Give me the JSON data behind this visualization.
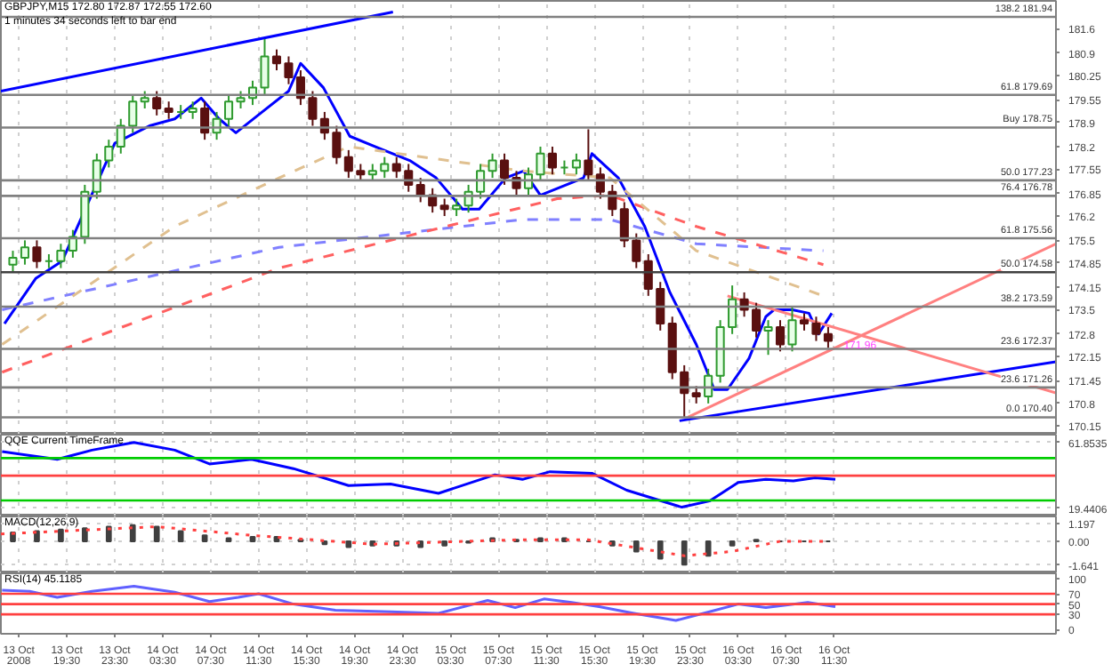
{
  "chart_data": [
    {
      "type": "candlestick",
      "title": "GBPJPY,M15  172.80 172.87 172.55 172.60",
      "subtitle": "1 minutes 34 seconds left to bar end",
      "x": [
        "2008-10-13T15:00",
        "2008-10-13T16:00",
        "2008-10-13T17:00",
        "2008-10-13T18:00",
        "2008-10-13T19:00",
        "2008-10-13T20:00",
        "2008-10-13T21:00",
        "2008-10-13T22:00",
        "2008-10-13T23:00",
        "2008-10-14T00:00",
        "2008-10-14T01:00",
        "2008-10-14T02:00",
        "2008-10-14T03:00",
        "2008-10-14T04:00",
        "2008-10-14T05:00",
        "2008-10-14T06:00",
        "2008-10-14T07:00",
        "2008-10-14T08:00",
        "2008-10-14T09:00",
        "2008-10-14T10:00",
        "2008-10-14T11:00",
        "2008-10-14T12:00",
        "2008-10-14T13:00",
        "2008-10-14T14:00",
        "2008-10-14T15:00",
        "2008-10-14T16:00",
        "2008-10-14T17:00",
        "2008-10-14T18:00",
        "2008-10-14T19:00",
        "2008-10-14T20:00",
        "2008-10-14T21:00",
        "2008-10-14T22:00",
        "2008-10-14T23:00",
        "2008-10-15T00:00",
        "2008-10-15T01:00",
        "2008-10-15T02:00",
        "2008-10-15T03:00",
        "2008-10-15T04:00",
        "2008-10-15T05:00",
        "2008-10-15T06:00",
        "2008-10-15T07:00",
        "2008-10-15T08:00",
        "2008-10-15T09:00",
        "2008-10-15T10:00",
        "2008-10-15T11:00",
        "2008-10-15T12:00",
        "2008-10-15T13:00",
        "2008-10-15T14:00",
        "2008-10-15T15:00",
        "2008-10-15T16:00",
        "2008-10-15T17:00",
        "2008-10-15T18:00",
        "2008-10-15T19:00",
        "2008-10-15T20:00",
        "2008-10-15T21:00",
        "2008-10-15T22:00",
        "2008-10-15T23:00",
        "2008-10-16T00:00",
        "2008-10-16T01:00",
        "2008-10-16T02:00",
        "2008-10-16T03:00",
        "2008-10-16T04:00",
        "2008-10-16T05:00",
        "2008-10-16T06:00",
        "2008-10-16T07:00",
        "2008-10-16T08:00",
        "2008-10-16T09:00",
        "2008-10-16T10:00",
        "2008-10-16T11:00"
      ],
      "ohlc": [
        [
          174.8,
          175.2,
          174.6,
          175.0
        ],
        [
          175.0,
          175.5,
          174.8,
          175.3
        ],
        [
          175.3,
          175.5,
          174.7,
          174.9
        ],
        [
          174.9,
          175.1,
          174.7,
          174.9
        ],
        [
          174.9,
          175.4,
          174.7,
          175.2
        ],
        [
          175.2,
          175.8,
          175.0,
          175.6
        ],
        [
          175.6,
          177.1,
          175.4,
          176.9
        ],
        [
          176.9,
          178.0,
          176.7,
          177.8
        ],
        [
          177.8,
          178.4,
          177.6,
          178.2
        ],
        [
          178.2,
          179.0,
          178.0,
          178.8
        ],
        [
          178.8,
          179.7,
          178.6,
          179.5
        ],
        [
          179.5,
          179.8,
          179.3,
          179.6
        ],
        [
          179.6,
          179.8,
          179.1,
          179.3
        ],
        [
          179.3,
          179.5,
          179.0,
          179.2
        ],
        [
          179.2,
          179.4,
          179.0,
          179.2
        ],
        [
          179.2,
          179.5,
          179.0,
          179.3
        ],
        [
          179.3,
          179.5,
          178.4,
          178.6
        ],
        [
          178.6,
          179.2,
          178.4,
          179.0
        ],
        [
          179.0,
          179.7,
          178.8,
          179.5
        ],
        [
          179.5,
          179.8,
          179.3,
          179.6
        ],
        [
          179.6,
          180.1,
          179.4,
          179.9
        ],
        [
          179.9,
          181.3,
          179.7,
          180.8
        ],
        [
          180.8,
          181.0,
          180.4,
          180.6
        ],
        [
          180.6,
          180.8,
          180.0,
          180.2
        ],
        [
          180.2,
          180.4,
          179.4,
          179.6
        ],
        [
          179.6,
          179.8,
          178.8,
          179.0
        ],
        [
          179.0,
          179.2,
          178.4,
          178.6
        ],
        [
          178.6,
          178.8,
          177.7,
          177.9
        ],
        [
          177.9,
          178.1,
          177.3,
          177.5
        ],
        [
          177.5,
          177.7,
          177.2,
          177.4
        ],
        [
          177.4,
          177.7,
          177.2,
          177.5
        ],
        [
          177.5,
          177.9,
          177.3,
          177.7
        ],
        [
          177.7,
          177.9,
          177.3,
          177.5
        ],
        [
          177.5,
          177.7,
          176.9,
          177.1
        ],
        [
          177.1,
          177.3,
          176.6,
          176.8
        ],
        [
          176.8,
          177.0,
          176.3,
          176.5
        ],
        [
          176.5,
          176.7,
          176.2,
          176.4
        ],
        [
          176.4,
          176.7,
          176.2,
          176.5
        ],
        [
          176.5,
          177.1,
          176.3,
          176.9
        ],
        [
          176.9,
          177.7,
          176.7,
          177.5
        ],
        [
          177.5,
          178.0,
          177.3,
          177.8
        ],
        [
          177.8,
          178.0,
          177.1,
          177.3
        ],
        [
          177.3,
          177.5,
          176.8,
          177.0
        ],
        [
          177.0,
          177.6,
          176.8,
          177.4
        ],
        [
          177.4,
          178.2,
          177.2,
          178.0
        ],
        [
          178.0,
          178.2,
          177.4,
          177.6
        ],
        [
          177.6,
          177.8,
          177.4,
          177.6
        ],
        [
          177.6,
          178.0,
          177.4,
          177.8
        ],
        [
          177.8,
          178.7,
          177.2,
          177.4
        ],
        [
          177.4,
          177.6,
          176.7,
          176.9
        ],
        [
          176.9,
          177.1,
          176.2,
          176.4
        ],
        [
          176.4,
          176.6,
          175.3,
          175.5
        ],
        [
          175.5,
          175.7,
          174.7,
          174.9
        ],
        [
          174.9,
          175.1,
          173.9,
          174.1
        ],
        [
          174.1,
          174.3,
          172.9,
          173.1
        ],
        [
          173.1,
          173.3,
          171.5,
          171.7
        ],
        [
          171.7,
          171.9,
          170.4,
          171.1
        ],
        [
          171.1,
          171.3,
          170.8,
          171.0
        ],
        [
          171.0,
          171.8,
          170.8,
          171.6
        ],
        [
          171.6,
          173.2,
          171.4,
          173.0
        ],
        [
          173.0,
          174.2,
          172.8,
          173.8
        ],
        [
          173.8,
          174.0,
          173.3,
          173.5
        ],
        [
          173.5,
          173.7,
          172.7,
          172.9
        ],
        [
          172.9,
          173.2,
          172.2,
          173.0
        ],
        [
          173.0,
          173.2,
          172.3,
          172.5
        ],
        [
          172.5,
          173.6,
          172.3,
          173.2
        ],
        [
          173.2,
          173.4,
          172.9,
          173.1
        ],
        [
          173.1,
          173.3,
          172.6,
          172.8
        ],
        [
          172.8,
          173.0,
          172.4,
          172.6
        ]
      ],
      "series": [
        {
          "type": "line",
          "color": "#0000ff",
          "line_style": "solid",
          "x": [
            "2008-10-13T14:18",
            "2008-10-13T16:54",
            "2008-10-13T19:06",
            "2008-10-13T21:18",
            "2008-10-13T23:30",
            "2008-10-14T02:24",
            "2008-10-14T04:30",
            "2008-10-14T06:42",
            "2008-10-14T08:12",
            "2008-10-14T09:36",
            "2008-10-14T11:48",
            "2008-10-14T14:00",
            "2008-10-14T15:00",
            "2008-10-14T16:54",
            "2008-10-14T19:06",
            "2008-10-14T21:12",
            "2008-10-15T00:06",
            "2008-10-15T02:18",
            "2008-10-15T04:30",
            "2008-10-15T05:54",
            "2008-10-15T08:06",
            "2008-10-15T09:36",
            "2008-10-15T11:00",
            "2008-10-15T14:36",
            "2008-10-15T15:18",
            "2008-10-15T17:30",
            "2008-10-15T19:42",
            "2008-10-15T21:48",
            "2008-10-16T00:00",
            "2008-10-16T01:30",
            "2008-10-16T02:36",
            "2008-10-16T04:24",
            "2008-10-16T05:48",
            "2008-10-16T06:30",
            "2008-10-16T08:00",
            "2008-10-16T09:24",
            "2008-10-16T10:12",
            "2008-10-16T11:18"
          ],
          "values": [
            173.1,
            174.4,
            174.9,
            176.6,
            178.3,
            178.8,
            179.0,
            179.6,
            179.0,
            178.6,
            179.2,
            179.8,
            180.6,
            179.9,
            178.5,
            178.2,
            177.8,
            177.3,
            176.4,
            176.4,
            177.3,
            177.5,
            176.8,
            177.3,
            178.0,
            177.3,
            175.9,
            174.0,
            172.5,
            171.2,
            171.2,
            172.1,
            173.3,
            173.5,
            173.5,
            173.4,
            172.8,
            173.4
          ]
        },
        {
          "type": "line",
          "color": "#8080ff",
          "line_style": "dashed",
          "x": [
            "2008-10-13T14:06",
            "2008-10-14T13:12",
            "2008-10-15T09:30",
            "2008-10-15T16:48",
            "2008-10-16T00:00",
            "2008-10-16T10:36"
          ],
          "values": [
            173.5,
            175.3,
            176.1,
            176.1,
            175.4,
            175.2
          ]
        },
        {
          "type": "line",
          "color": "#ff6060",
          "line_style": "dashed",
          "x": [
            "2008-10-13T14:06",
            "2008-10-14T13:12",
            "2008-10-15T12:24",
            "2008-10-15T16:48",
            "2008-10-16T00:00",
            "2008-10-16T10:36"
          ],
          "values": [
            171.7,
            174.7,
            176.7,
            176.8,
            175.9,
            174.8
          ]
        },
        {
          "type": "line",
          "color": "#e0c090",
          "line_style": "dashed",
          "x": [
            "2008-10-13T14:06",
            "2008-10-14T04:30",
            "2008-10-14T13:12",
            "2008-10-14T19:00",
            "2008-10-15T09:30",
            "2008-10-15T16:48",
            "2008-10-16T00:00",
            "2008-10-16T10:36"
          ],
          "values": [
            172.5,
            175.9,
            177.3,
            178.2,
            177.5,
            177.3,
            175.2,
            173.9
          ]
        },
        {
          "type": "line",
          "color": "#0000ff",
          "line_style": "solid",
          "x": [
            "2008-10-13T14:00",
            "2008-10-14T22:42"
          ],
          "values": [
            179.8,
            182.08
          ]
        },
        {
          "type": "line",
          "color": "#0000ff",
          "line_style": "solid",
          "x": [
            "2008-10-15T22:36",
            "2008-10-17T06:00"
          ],
          "values": [
            170.3,
            172.0
          ]
        },
        {
          "type": "line",
          "color": "#ff8080",
          "line_style": "solid",
          "x": [
            "2008-10-16T02:36",
            "2008-10-17T06:00"
          ],
          "values": [
            173.9,
            171.1
          ]
        },
        {
          "type": "line",
          "color": "#ff8080",
          "line_style": "solid",
          "x": [
            "2008-10-15T23:18",
            "2008-10-17T06:00"
          ],
          "values": [
            170.4,
            175.4
          ]
        }
      ],
      "ref_lines": [
        {
          "axis": "y",
          "value": 181.94,
          "label": "138.2 181.94",
          "color": "#808080"
        },
        {
          "axis": "y",
          "value": 179.69,
          "label": "61.8 179.69",
          "color": "#808080"
        },
        {
          "axis": "y",
          "value": 178.75,
          "label": "Buy 178.75",
          "color": "#808080"
        },
        {
          "axis": "y",
          "value": 177.23,
          "label": "50.0 177.23",
          "color": "#808080"
        },
        {
          "axis": "y",
          "value": 176.78,
          "label": "76.4 176.78",
          "color": "#808080"
        },
        {
          "axis": "y",
          "value": 175.56,
          "label": "61.8 175.56",
          "color": "#808080"
        },
        {
          "axis": "y",
          "value": 174.58,
          "label": "50.0 174.58",
          "color": "#404040"
        },
        {
          "axis": "y",
          "value": 173.59,
          "label": "38.2 173.59",
          "color": "#808080"
        },
        {
          "axis": "y",
          "value": 172.37,
          "label": "23.6 172.37",
          "color": "#808080"
        },
        {
          "axis": "y",
          "value": 171.26,
          "label": "23.6 171.26",
          "color": "#808080"
        },
        {
          "axis": "y",
          "value": 170.4,
          "label": "0.0 170.40",
          "color": "#808080"
        }
      ],
      "annotations": [
        {
          "text": "171.96",
          "x": "2008-10-16T12:00",
          "y": 172.5
        }
      ],
      "xlim": [
        "2008-10-13T14:00",
        "2008-10-17T06:00"
      ],
      "ylim": [
        169.9,
        182.4
      ],
      "yticks": [
        181.6,
        180.9,
        180.25,
        179.55,
        178.9,
        178.2,
        177.55,
        176.85,
        176.2,
        175.5,
        174.85,
        174.15,
        173.5,
        172.8,
        172.15,
        171.45,
        170.8,
        170.15
      ],
      "xticks": [
        "2008-10-13T15:30",
        "2008-10-13T19:30",
        "2008-10-13T23:30",
        "2008-10-14T03:30",
        "2008-10-14T07:30",
        "2008-10-14T11:30",
        "2008-10-14T15:30",
        "2008-10-14T19:30",
        "2008-10-14T23:30",
        "2008-10-15T03:30",
        "2008-10-15T07:30",
        "2008-10-15T11:30",
        "2008-10-15T15:30",
        "2008-10-15T19:30",
        "2008-10-15T23:30",
        "2008-10-16T03:30",
        "2008-10-16T07:30",
        "2008-10-16T11:30"
      ],
      "tick_labels": "y",
      "grid": "x"
    },
    {
      "type": "line",
      "title": "QQE Current TimeFrame",
      "series": [
        {
          "color": "#0000ff",
          "line_style": "solid",
          "x": [
            "2008-10-13T14:06",
            "2008-10-13T18:42",
            "2008-10-13T21:36",
            "2008-10-14T01:06",
            "2008-10-14T04:30",
            "2008-10-14T07:24",
            "2008-10-14T10:54",
            "2008-10-14T14:24",
            "2008-10-14T19:00",
            "2008-10-14T22:30",
            "2008-10-15T02:30",
            "2008-10-15T07:12",
            "2008-10-15T09:30",
            "2008-10-15T11:48",
            "2008-10-15T15:18",
            "2008-10-15T18:12",
            "2008-10-15T22:48",
            "2008-10-16T01:06",
            "2008-10-16T03:30",
            "2008-10-16T05:48",
            "2008-10-16T08:06",
            "2008-10-16T09:54",
            "2008-10-16T11:36"
          ],
          "values": [
            56,
            51,
            57,
            62,
            57,
            48,
            51,
            45,
            34,
            35,
            29,
            41,
            38,
            43,
            42,
            31,
            20,
            24,
            36,
            38,
            37,
            39,
            38
          ]
        }
      ],
      "ref_lines": [
        {
          "axis": "y",
          "value": 51.8,
          "color": "#00cc00"
        },
        {
          "axis": "y",
          "value": 40.4,
          "color": "#ff4040"
        },
        {
          "axis": "y",
          "value": 24.4,
          "color": "#00cc00"
        }
      ],
      "xlim": [
        "2008-10-13T14:00",
        "2008-10-17T06:00"
      ],
      "ylim": [
        14,
        67
      ],
      "yticks": [
        61.8535,
        19.4406
      ],
      "xticks": [
        "2008-10-13T15:30",
        "2008-10-13T19:30",
        "2008-10-13T23:30",
        "2008-10-14T03:30",
        "2008-10-14T07:30",
        "2008-10-14T11:30",
        "2008-10-14T15:30",
        "2008-10-14T19:30",
        "2008-10-14T23:30",
        "2008-10-15T03:30",
        "2008-10-15T07:30",
        "2008-10-15T11:30",
        "2008-10-15T15:30",
        "2008-10-15T19:30",
        "2008-10-15T23:30",
        "2008-10-16T03:30",
        "2008-10-16T07:30",
        "2008-10-16T11:30"
      ],
      "tick_labels": "y",
      "grid": true
    },
    {
      "type": "bar",
      "title": "MACD(12,26,9)",
      "x": [
        "2008-10-13T15:00",
        "2008-10-13T17:00",
        "2008-10-13T19:00",
        "2008-10-13T21:00",
        "2008-10-13T23:00",
        "2008-10-14T01:00",
        "2008-10-14T03:00",
        "2008-10-14T05:00",
        "2008-10-14T07:00",
        "2008-10-14T09:00",
        "2008-10-14T11:00",
        "2008-10-14T13:00",
        "2008-10-14T15:00",
        "2008-10-14T17:00",
        "2008-10-14T19:00",
        "2008-10-14T21:00",
        "2008-10-14T23:00",
        "2008-10-15T01:00",
        "2008-10-15T03:00",
        "2008-10-15T05:00",
        "2008-10-15T07:00",
        "2008-10-15T09:00",
        "2008-10-15T11:00",
        "2008-10-15T13:00",
        "2008-10-15T15:00",
        "2008-10-15T17:00",
        "2008-10-15T19:00",
        "2008-10-15T21:00",
        "2008-10-15T23:00",
        "2008-10-16T01:00",
        "2008-10-16T03:00",
        "2008-10-16T05:00",
        "2008-10-16T07:00",
        "2008-10-16T09:00",
        "2008-10-16T11:00"
      ],
      "series": [
        {
          "color": "#404040",
          "values": [
            0.6,
            0.7,
            0.8,
            0.9,
            1.0,
            1.1,
            1.0,
            0.7,
            0.4,
            0.2,
            0.3,
            0.3,
            0.1,
            -0.2,
            -0.4,
            -0.3,
            -0.3,
            -0.4,
            -0.3,
            -0.1,
            0.2,
            0.1,
            0.2,
            0.2,
            0.0,
            -0.3,
            -0.7,
            -1.2,
            -1.6,
            -1.0,
            -0.3,
            0.1,
            0.0,
            0.0,
            0.0
          ]
        },
        {
          "type": "line",
          "color": "#ff4040",
          "line_style": "dotted",
          "x": [
            "2008-10-13T14:00",
            "2008-10-14T03:00",
            "2008-10-14T11:00",
            "2008-10-14T21:00",
            "2008-10-15T09:00",
            "2008-10-15T15:00",
            "2008-10-15T23:00",
            "2008-10-16T03:00",
            "2008-10-16T07:00",
            "2008-10-16T11:00"
          ],
          "values": [
            0.5,
            1.0,
            0.4,
            -0.2,
            0.1,
            0.1,
            -1.0,
            -0.7,
            0.0,
            0.0
          ]
        }
      ],
      "xlim": [
        "2008-10-13T14:00",
        "2008-10-17T06:00"
      ],
      "ylim": [
        -2.2,
        1.7
      ],
      "yticks": [
        1.197,
        {
          "value": 0,
          "label": "0.00"
        },
        -1.641
      ],
      "xticks": [
        "2008-10-13T15:30",
        "2008-10-13T19:30",
        "2008-10-13T23:30",
        "2008-10-14T03:30",
        "2008-10-14T07:30",
        "2008-10-14T11:30",
        "2008-10-14T15:30",
        "2008-10-14T19:30",
        "2008-10-14T23:30",
        "2008-10-15T03:30",
        "2008-10-15T07:30",
        "2008-10-15T11:30",
        "2008-10-15T15:30",
        "2008-10-15T19:30",
        "2008-10-15T23:30",
        "2008-10-16T03:30",
        "2008-10-16T07:30",
        "2008-10-16T11:30"
      ],
      "tick_labels": "y",
      "grid": true
    },
    {
      "type": "line",
      "title": "RSI(14) 45.1185",
      "series": [
        {
          "color": "#6060ff",
          "line_style": "solid",
          "x": [
            "2008-10-13T14:06",
            "2008-10-13T16:24",
            "2008-10-13T18:42",
            "2008-10-13T21:36",
            "2008-10-14T01:06",
            "2008-10-14T04:30",
            "2008-10-14T07:24",
            "2008-10-14T09:48",
            "2008-10-14T11:30",
            "2008-10-14T14:24",
            "2008-10-14T17:54",
            "2008-10-14T22:30",
            "2008-10-15T02:30",
            "2008-10-15T06:36",
            "2008-10-15T08:54",
            "2008-10-15T11:18",
            "2008-10-15T13:36",
            "2008-10-15T15:54",
            "2008-10-15T18:48",
            "2008-10-15T22:18",
            "2008-10-16T01:06",
            "2008-10-16T03:30",
            "2008-10-16T05:48",
            "2008-10-16T09:18",
            "2008-10-16T11:36"
          ],
          "values": [
            77,
            75,
            63,
            75,
            85,
            73,
            55,
            63,
            70,
            50,
            38,
            35,
            32,
            57,
            43,
            60,
            53,
            45,
            32,
            18,
            35,
            50,
            43,
            53,
            45
          ]
        }
      ],
      "ref_lines": [
        {
          "axis": "y",
          "value": 70,
          "color": "#ff4040"
        },
        {
          "axis": "y",
          "value": 50,
          "color": "#ff4040"
        },
        {
          "axis": "y",
          "value": 30,
          "color": "#ff4040"
        }
      ],
      "xlim": [
        "2008-10-13T14:00",
        "2008-10-17T06:00"
      ],
      "ylim": [
        -8,
        110
      ],
      "yticks": [
        0,
        30,
        50,
        70,
        100
      ],
      "xticks": [
        {
          "value": "2008-10-13T15:30",
          "label": "13 Oct 2008"
        },
        {
          "value": "2008-10-13T19:30",
          "label": "13 Oct 19:30"
        },
        {
          "value": "2008-10-13T23:30",
          "label": "13 Oct 23:30"
        },
        {
          "value": "2008-10-14T03:30",
          "label": "14 Oct 03:30"
        },
        {
          "value": "2008-10-14T07:30",
          "label": "14 Oct 07:30"
        },
        {
          "value": "2008-10-14T11:30",
          "label": "14 Oct 11:30"
        },
        {
          "value": "2008-10-14T15:30",
          "label": "14 Oct 15:30"
        },
        {
          "value": "2008-10-14T19:30",
          "label": "14 Oct 19:30"
        },
        {
          "value": "2008-10-14T23:30",
          "label": "14 Oct 23:30"
        },
        {
          "value": "2008-10-15T03:30",
          "label": "15 Oct 03:30"
        },
        {
          "value": "2008-10-15T07:30",
          "label": "15 Oct 07:30"
        },
        {
          "value": "2008-10-15T11:30",
          "label": "15 Oct 11:30"
        },
        {
          "value": "2008-10-15T15:30",
          "label": "15 Oct 15:30"
        },
        {
          "value": "2008-10-15T19:30",
          "label": "15 Oct 19:30"
        },
        {
          "value": "2008-10-15T23:30",
          "label": "15 Oct 23:30"
        },
        {
          "value": "2008-10-16T03:30",
          "label": "16 Oct 03:30"
        },
        {
          "value": "2008-10-16T07:30",
          "label": "16 Oct 07:30"
        },
        {
          "value": "2008-10-16T11:30",
          "label": "16 Oct 11:30"
        }
      ]
    }
  ]
}
